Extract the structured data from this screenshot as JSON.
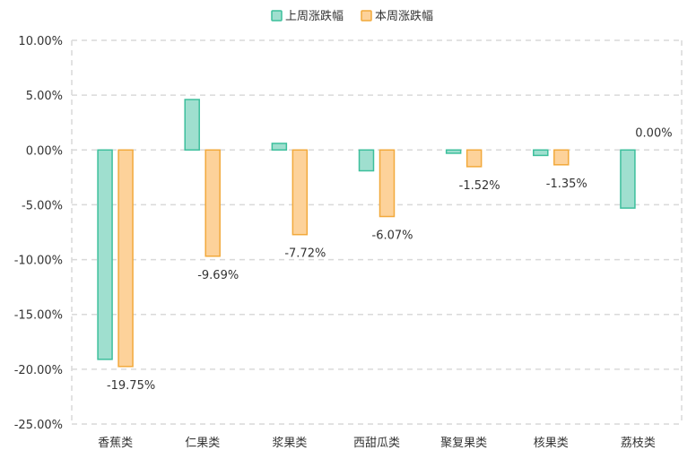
{
  "chart_data": {
    "type": "bar",
    "categories": [
      "香蕉类",
      "仁果类",
      "浆果类",
      "西甜瓜类",
      "聚复果类",
      "核果类",
      "荔枝类"
    ],
    "series": [
      {
        "name": "上周涨跌幅",
        "values": [
          -19.1,
          4.6,
          0.6,
          -1.9,
          -0.3,
          -0.5,
          -5.3
        ],
        "color": "#3dbf9c",
        "fill": "#9fdfcf",
        "show_labels": false
      },
      {
        "name": "本周涨跌幅",
        "values": [
          -19.75,
          -9.69,
          -7.72,
          -6.07,
          -1.52,
          -1.35,
          0.0
        ],
        "labels": [
          "-19.75%",
          "-9.69%",
          "-7.72%",
          "-6.07%",
          "-1.52%",
          "-1.35%",
          "0.00%"
        ],
        "color": "#f2a93b",
        "fill": "#fdd29a",
        "show_labels": true
      }
    ],
    "ylim": [
      -25,
      10
    ],
    "yticks": [
      10,
      5,
      0,
      -5,
      -10,
      -15,
      -20,
      -25
    ],
    "ytick_labels": [
      "10.00%",
      "5.00%",
      "0.00%",
      "-5.00%",
      "-10.00%",
      "-15.00%",
      "-20.00%",
      "-25.00%"
    ],
    "grid": true,
    "legend_position": "top-center"
  }
}
